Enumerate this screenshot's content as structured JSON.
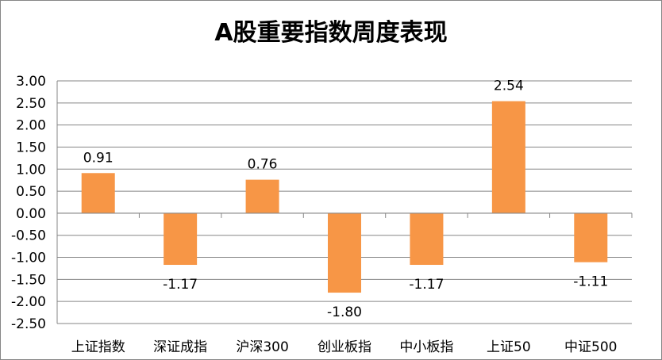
{
  "chart_data": {
    "type": "bar",
    "title": "A股重要指数周度表现",
    "categories": [
      "上证指数",
      "深证成指",
      "沪深300",
      "创业板指",
      "中小板指",
      "上证50",
      "中证500"
    ],
    "series": [
      {
        "values": [
          0.91,
          -1.17,
          0.76,
          -1.8,
          -1.17,
          2.54,
          -1.11
        ],
        "color": "#F79646"
      }
    ],
    "data_labels": [
      "0.91",
      "-1.17",
      "0.76",
      "-1.80",
      "-1.17",
      "2.54",
      "-1.11"
    ],
    "ylim": [
      -2.5,
      3.0
    ],
    "y_ticks": [
      "3.00",
      "2.50",
      "2.00",
      "1.50",
      "1.00",
      "0.50",
      "0.00",
      "-0.50",
      "-1.00",
      "-1.50",
      "-2.00",
      "-2.50"
    ],
    "xlabel": "",
    "ylabel": "",
    "grid": true,
    "gridline_color": "#868686",
    "legend": "none"
  }
}
